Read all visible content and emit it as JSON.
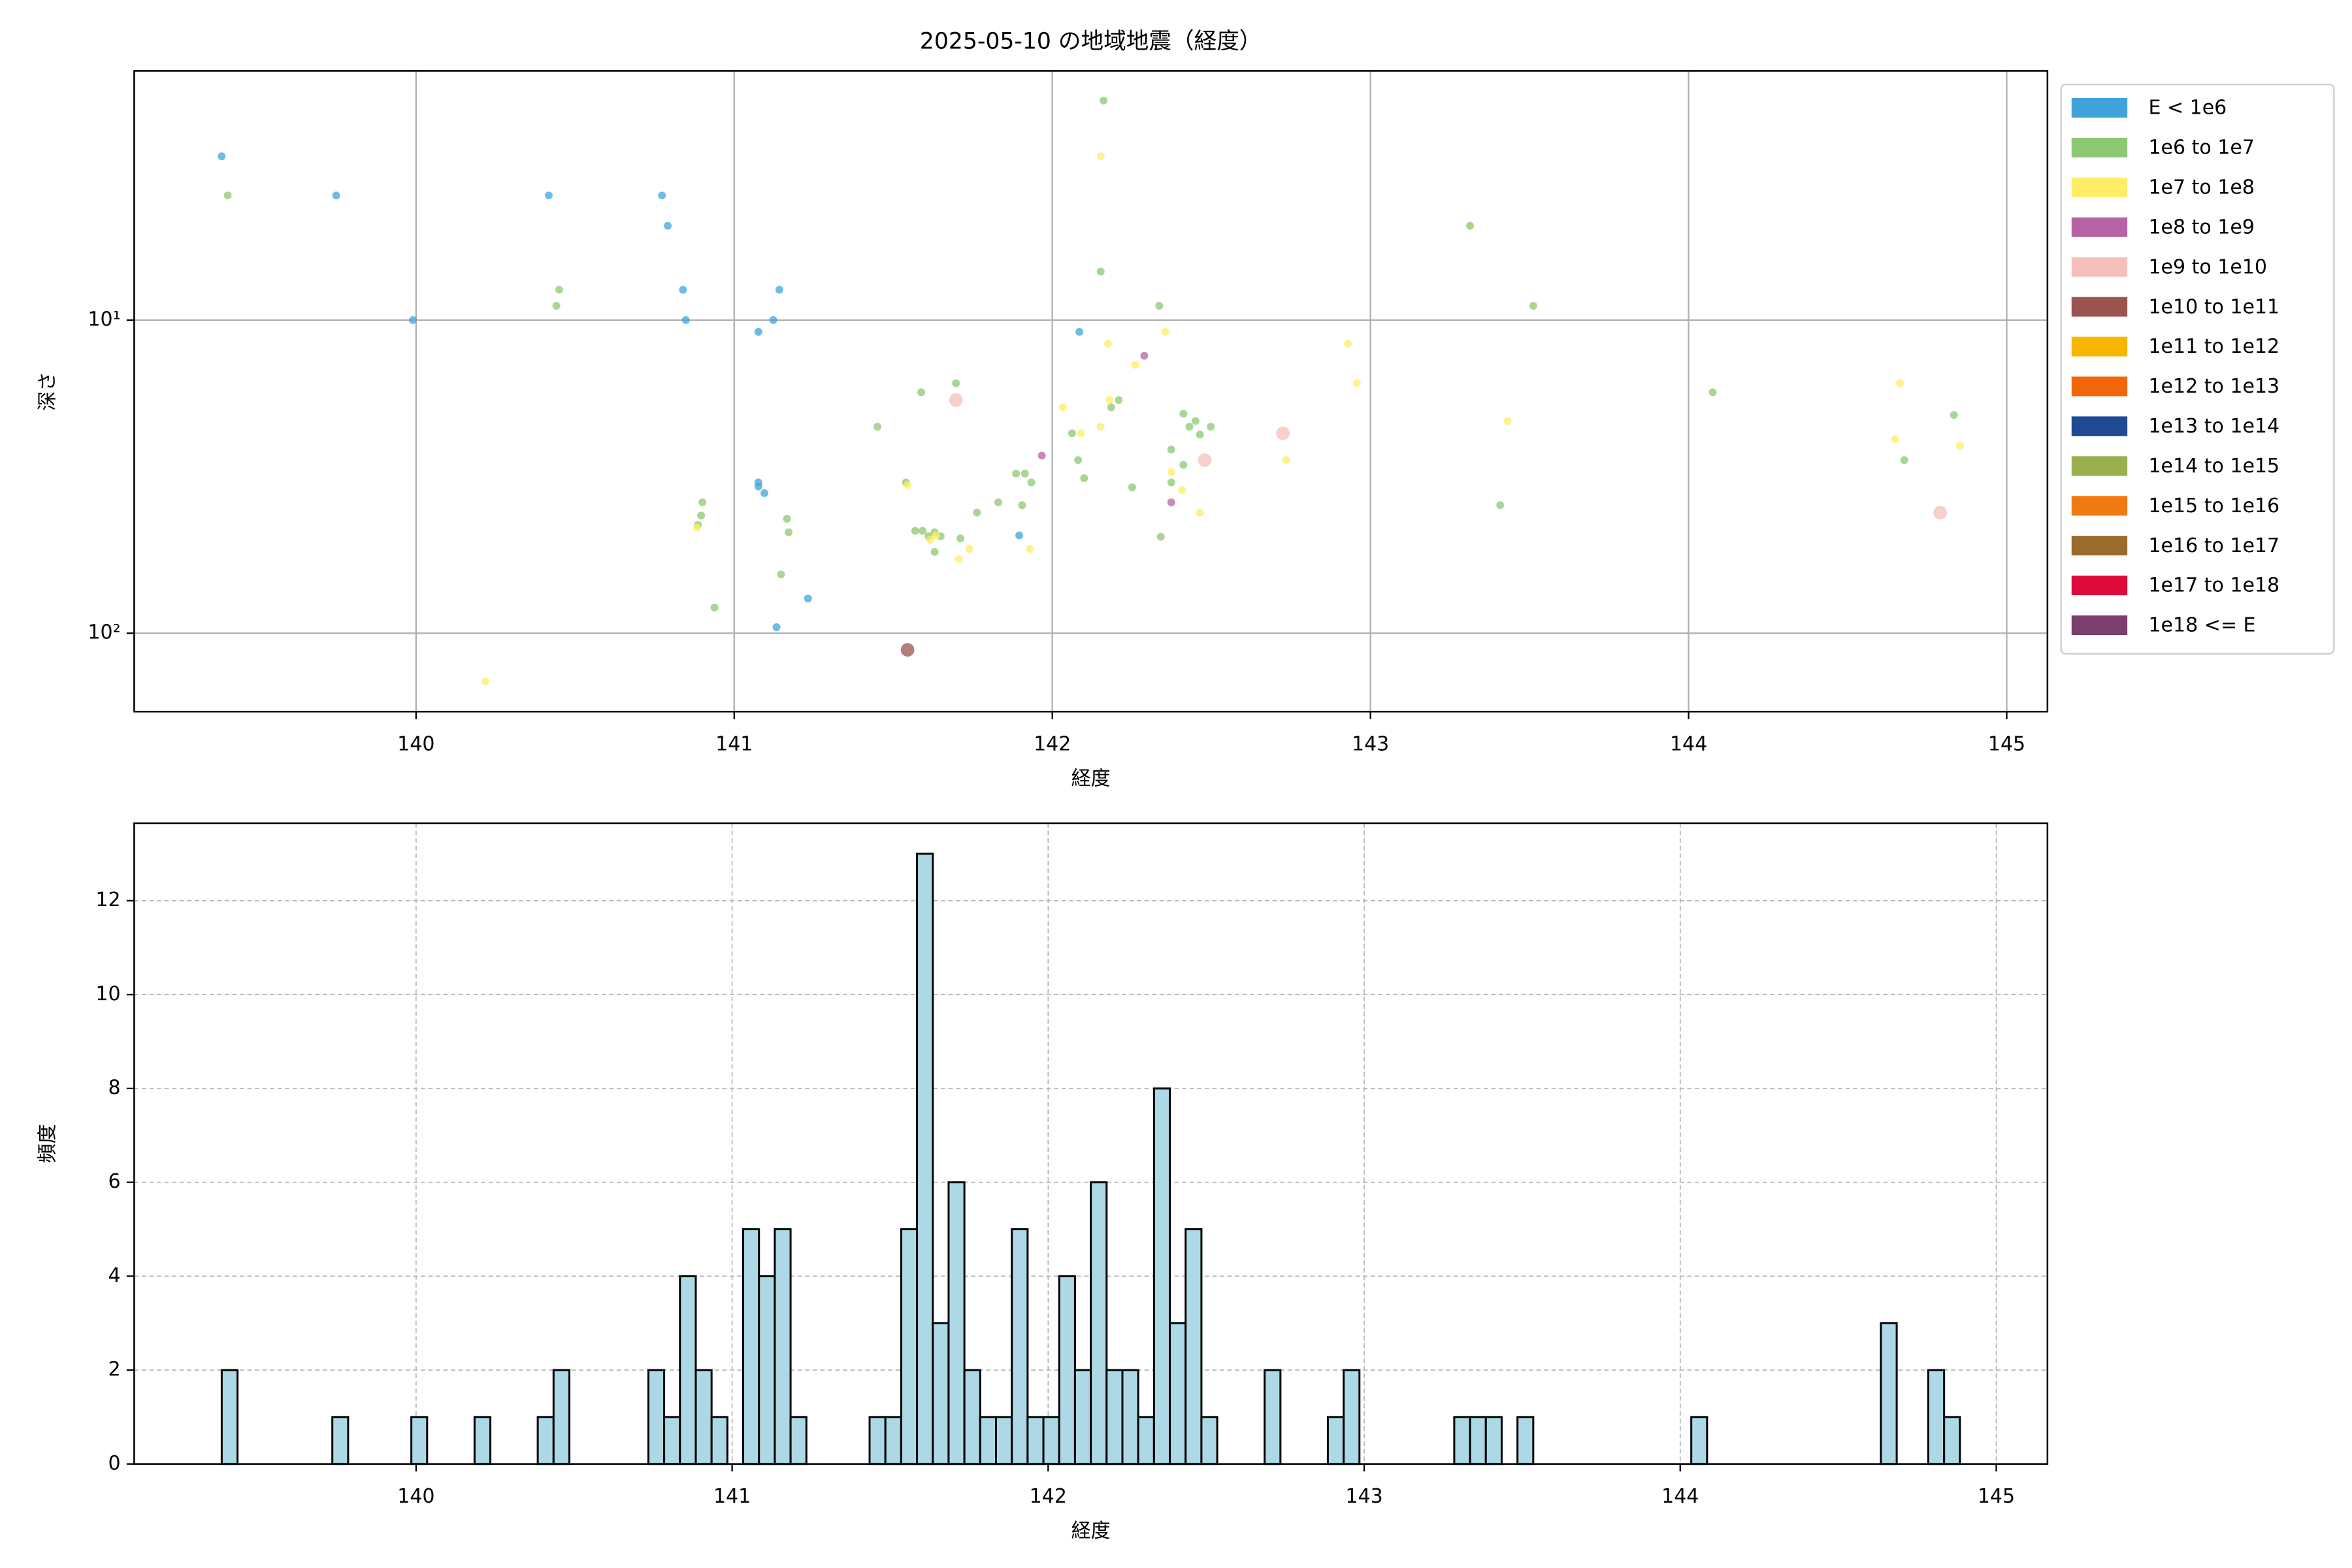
{
  "chart_data": [
    {
      "type": "scatter",
      "title": "2025-05-10 の地域地震（経度）",
      "xlabel": "経度",
      "ylabel": "深さ",
      "xlim": [
        139.114,
        145.128
      ],
      "xticks": [
        140,
        141,
        142,
        143,
        144,
        145
      ],
      "ylim": [
        1.6,
        178
      ],
      "log_y": true,
      "invert_y": true,
      "yticks": [
        {
          "value": 10,
          "label": "10¹"
        },
        {
          "value": 100,
          "label": "10²"
        }
      ],
      "grid": true,
      "grid_style": "solid",
      "legend": "outside upper right",
      "series": [
        {
          "name": "E < 1e6",
          "color": "#3fa4dc",
          "x": [
            139.389,
            139.749,
            139.99,
            140.417,
            140.773,
            140.791,
            140.839,
            140.848,
            141.076,
            141.123,
            141.142,
            141.076,
            141.076,
            141.095,
            142.085,
            141.896,
            141.133,
            141.232
          ],
          "values": [
            3.0,
            4.0,
            10,
            4.0,
            4.0,
            5.0,
            8.0,
            10,
            10.9,
            10,
            8,
            33,
            34,
            35.7,
            10.9,
            48.7,
            95.7,
            77.5
          ]
        },
        {
          "name": "1e6 to 1e7",
          "color": "#8dc872",
          "x": [
            139.408,
            142.161,
            142.152,
            140.45,
            140.441,
            142.336,
            143.313,
            143.512,
            141.697,
            141.588,
            141.45,
            144.076,
            142.209,
            142.185,
            142.412,
            142.45,
            142.431,
            142.498,
            142.464,
            142.374,
            142.062,
            144.834,
            142.081,
            142.412,
            144.678,
            141.886,
            141.914,
            141.934,
            142.1,
            142.374,
            142.251,
            141.83,
            140.9,
            141.905,
            143.408,
            141.763,
            140.896,
            141.166,
            140.886,
            141.171,
            141.569,
            141.592,
            141.63,
            141.711,
            142.341,
            141.63,
            141.147,
            140.938,
            141.54,
            141.611,
            141.649
          ],
          "values": [
            4,
            1.99,
            7.0,
            8,
            9,
            9,
            5,
            9,
            15.9,
            17,
            21.9,
            17,
            18,
            19,
            19.9,
            21,
            21.9,
            21.9,
            23.2,
            25.9,
            23,
            20.1,
            28,
            29,
            28,
            30.9,
            30.9,
            33,
            32,
            33,
            34.2,
            38.2,
            38.2,
            39,
            39,
            41.2,
            42.1,
            43.1,
            45.1,
            47.6,
            47.1,
            47.1,
            47.6,
            49.8,
            49.2,
            55,
            64.9,
            82.8,
            33,
            49,
            49
          ]
        },
        {
          "name": "1e7 to 1e8",
          "color": "#ffee66",
          "x": [
            142.152,
            142.175,
            142.355,
            142.261,
            142.929,
            142.957,
            142.033,
            142.18,
            142.152,
            142.09,
            143.431,
            144.664,
            144.649,
            144.853,
            142.735,
            142.374,
            142.408,
            142.464,
            141.545,
            140.882,
            141.635,
            141.616,
            141.739,
            141.706,
            141.929,
            140.218
          ],
          "values": [
            3.0,
            11.9,
            10.9,
            13.9,
            11.9,
            15.9,
            19,
            18,
            21.9,
            23,
            21,
            15.9,
            24,
            25.1,
            28,
            30.6,
            34.9,
            41.2,
            33.6,
            46,
            48.7,
            50.3,
            53.8,
            58,
            53.8,
            142.6
          ]
        },
        {
          "name": "1e8 to 1e9",
          "color": "#b563a3",
          "x": [
            142.289,
            141.967,
            142.374
          ],
          "values": [
            13,
            27.1,
            38.2
          ]
        },
        {
          "name": "1e9 to 1e10",
          "color": "#f5c0ba",
          "x": [
            141.697,
            142.725,
            142.479,
            144.791
          ],
          "values": [
            18,
            23,
            28,
            41.2
          ]
        },
        {
          "name": "1e10 to 1e11",
          "color": "#9b534f",
          "x": [
            141.545
          ],
          "values": [
            113
          ]
        },
        {
          "name": "1e11 to 1e12",
          "color": "#f7b500",
          "x": [],
          "values": []
        },
        {
          "name": "1e12 to 1e13",
          "color": "#f2660a",
          "x": [],
          "values": []
        },
        {
          "name": "1e13 to 1e14",
          "color": "#1e4a94",
          "x": [],
          "values": []
        },
        {
          "name": "1e14 to 1e15",
          "color": "#9aaf4e",
          "x": [],
          "values": []
        },
        {
          "name": "1e15 to 1e16",
          "color": "#f07a10",
          "x": [],
          "values": []
        },
        {
          "name": "1e16 to 1e17",
          "color": "#9b6b2b",
          "x": [],
          "values": []
        },
        {
          "name": "1e17 to 1e18",
          "color": "#dd0a3c",
          "x": [],
          "values": []
        },
        {
          "name": "1e18 <= E",
          "color": "#7a3f6e",
          "x": [],
          "values": []
        }
      ]
    },
    {
      "type": "histogram",
      "xlabel": "経度",
      "ylabel": "頻度",
      "color": "#add8e6",
      "edgecolor": "#000000",
      "xlim": [
        139.108,
        145.162
      ],
      "xticks": [
        140,
        141,
        142,
        143,
        144,
        145
      ],
      "ylim": [
        0,
        13.65
      ],
      "yticks": [
        0,
        2,
        4,
        6,
        8,
        10,
        12
      ],
      "grid": true,
      "grid_style": "dashed",
      "bins": [
        139.385,
        139.435,
        139.485,
        139.535,
        139.585,
        139.635,
        139.685,
        139.735,
        139.785,
        139.835,
        139.885,
        139.935,
        139.985,
        140.035,
        140.085,
        140.135,
        140.185,
        140.235,
        140.285,
        140.335,
        140.385,
        140.435,
        140.485,
        140.535,
        140.585,
        140.635,
        140.685,
        140.735,
        140.785,
        140.835,
        140.885,
        140.935,
        140.985,
        141.035,
        141.085,
        141.135,
        141.185,
        141.235,
        141.285,
        141.335,
        141.385,
        141.435,
        141.485,
        141.535,
        141.585,
        141.635,
        141.685,
        141.735,
        141.785,
        141.835,
        141.885,
        141.935,
        141.985,
        142.035,
        142.085,
        142.135,
        142.185,
        142.235,
        142.285,
        142.335,
        142.385,
        142.435,
        142.485,
        142.535,
        142.585,
        142.635,
        142.685,
        142.735,
        142.785,
        142.835,
        142.885,
        142.935,
        142.985,
        143.035,
        143.085,
        143.135,
        143.185,
        143.235,
        143.285,
        143.335,
        143.385,
        143.435,
        143.485,
        143.535,
        143.585,
        143.635,
        143.685,
        143.735,
        143.785,
        143.835,
        143.885,
        143.935,
        143.985,
        144.035,
        144.085,
        144.135,
        144.185,
        144.235,
        144.285,
        144.335,
        144.385,
        144.435,
        144.485,
        144.535,
        144.585,
        144.635,
        144.685,
        144.735,
        144.785,
        144.835,
        144.885
      ],
      "values": [
        2,
        0,
        0,
        0,
        0,
        0,
        0,
        1,
        0,
        0,
        0,
        0,
        1,
        0,
        0,
        0,
        1,
        0,
        0,
        0,
        1,
        2,
        0,
        0,
        0,
        0,
        0,
        2,
        1,
        4,
        2,
        1,
        0,
        5,
        4,
        5,
        1,
        0,
        0,
        0,
        0,
        1,
        1,
        5,
        13,
        3,
        6,
        2,
        1,
        1,
        5,
        1,
        1,
        4,
        2,
        6,
        2,
        2,
        1,
        8,
        3,
        5,
        1,
        0,
        0,
        0,
        2,
        0,
        0,
        0,
        1,
        2,
        0,
        0,
        0,
        0,
        0,
        0,
        1,
        1,
        1,
        0,
        1,
        0,
        0,
        0,
        0,
        0,
        0,
        0,
        0,
        0,
        0,
        1,
        0,
        0,
        0,
        0,
        0,
        0,
        0,
        0,
        0,
        0,
        0,
        3,
        0,
        0,
        2,
        1
      ]
    }
  ]
}
